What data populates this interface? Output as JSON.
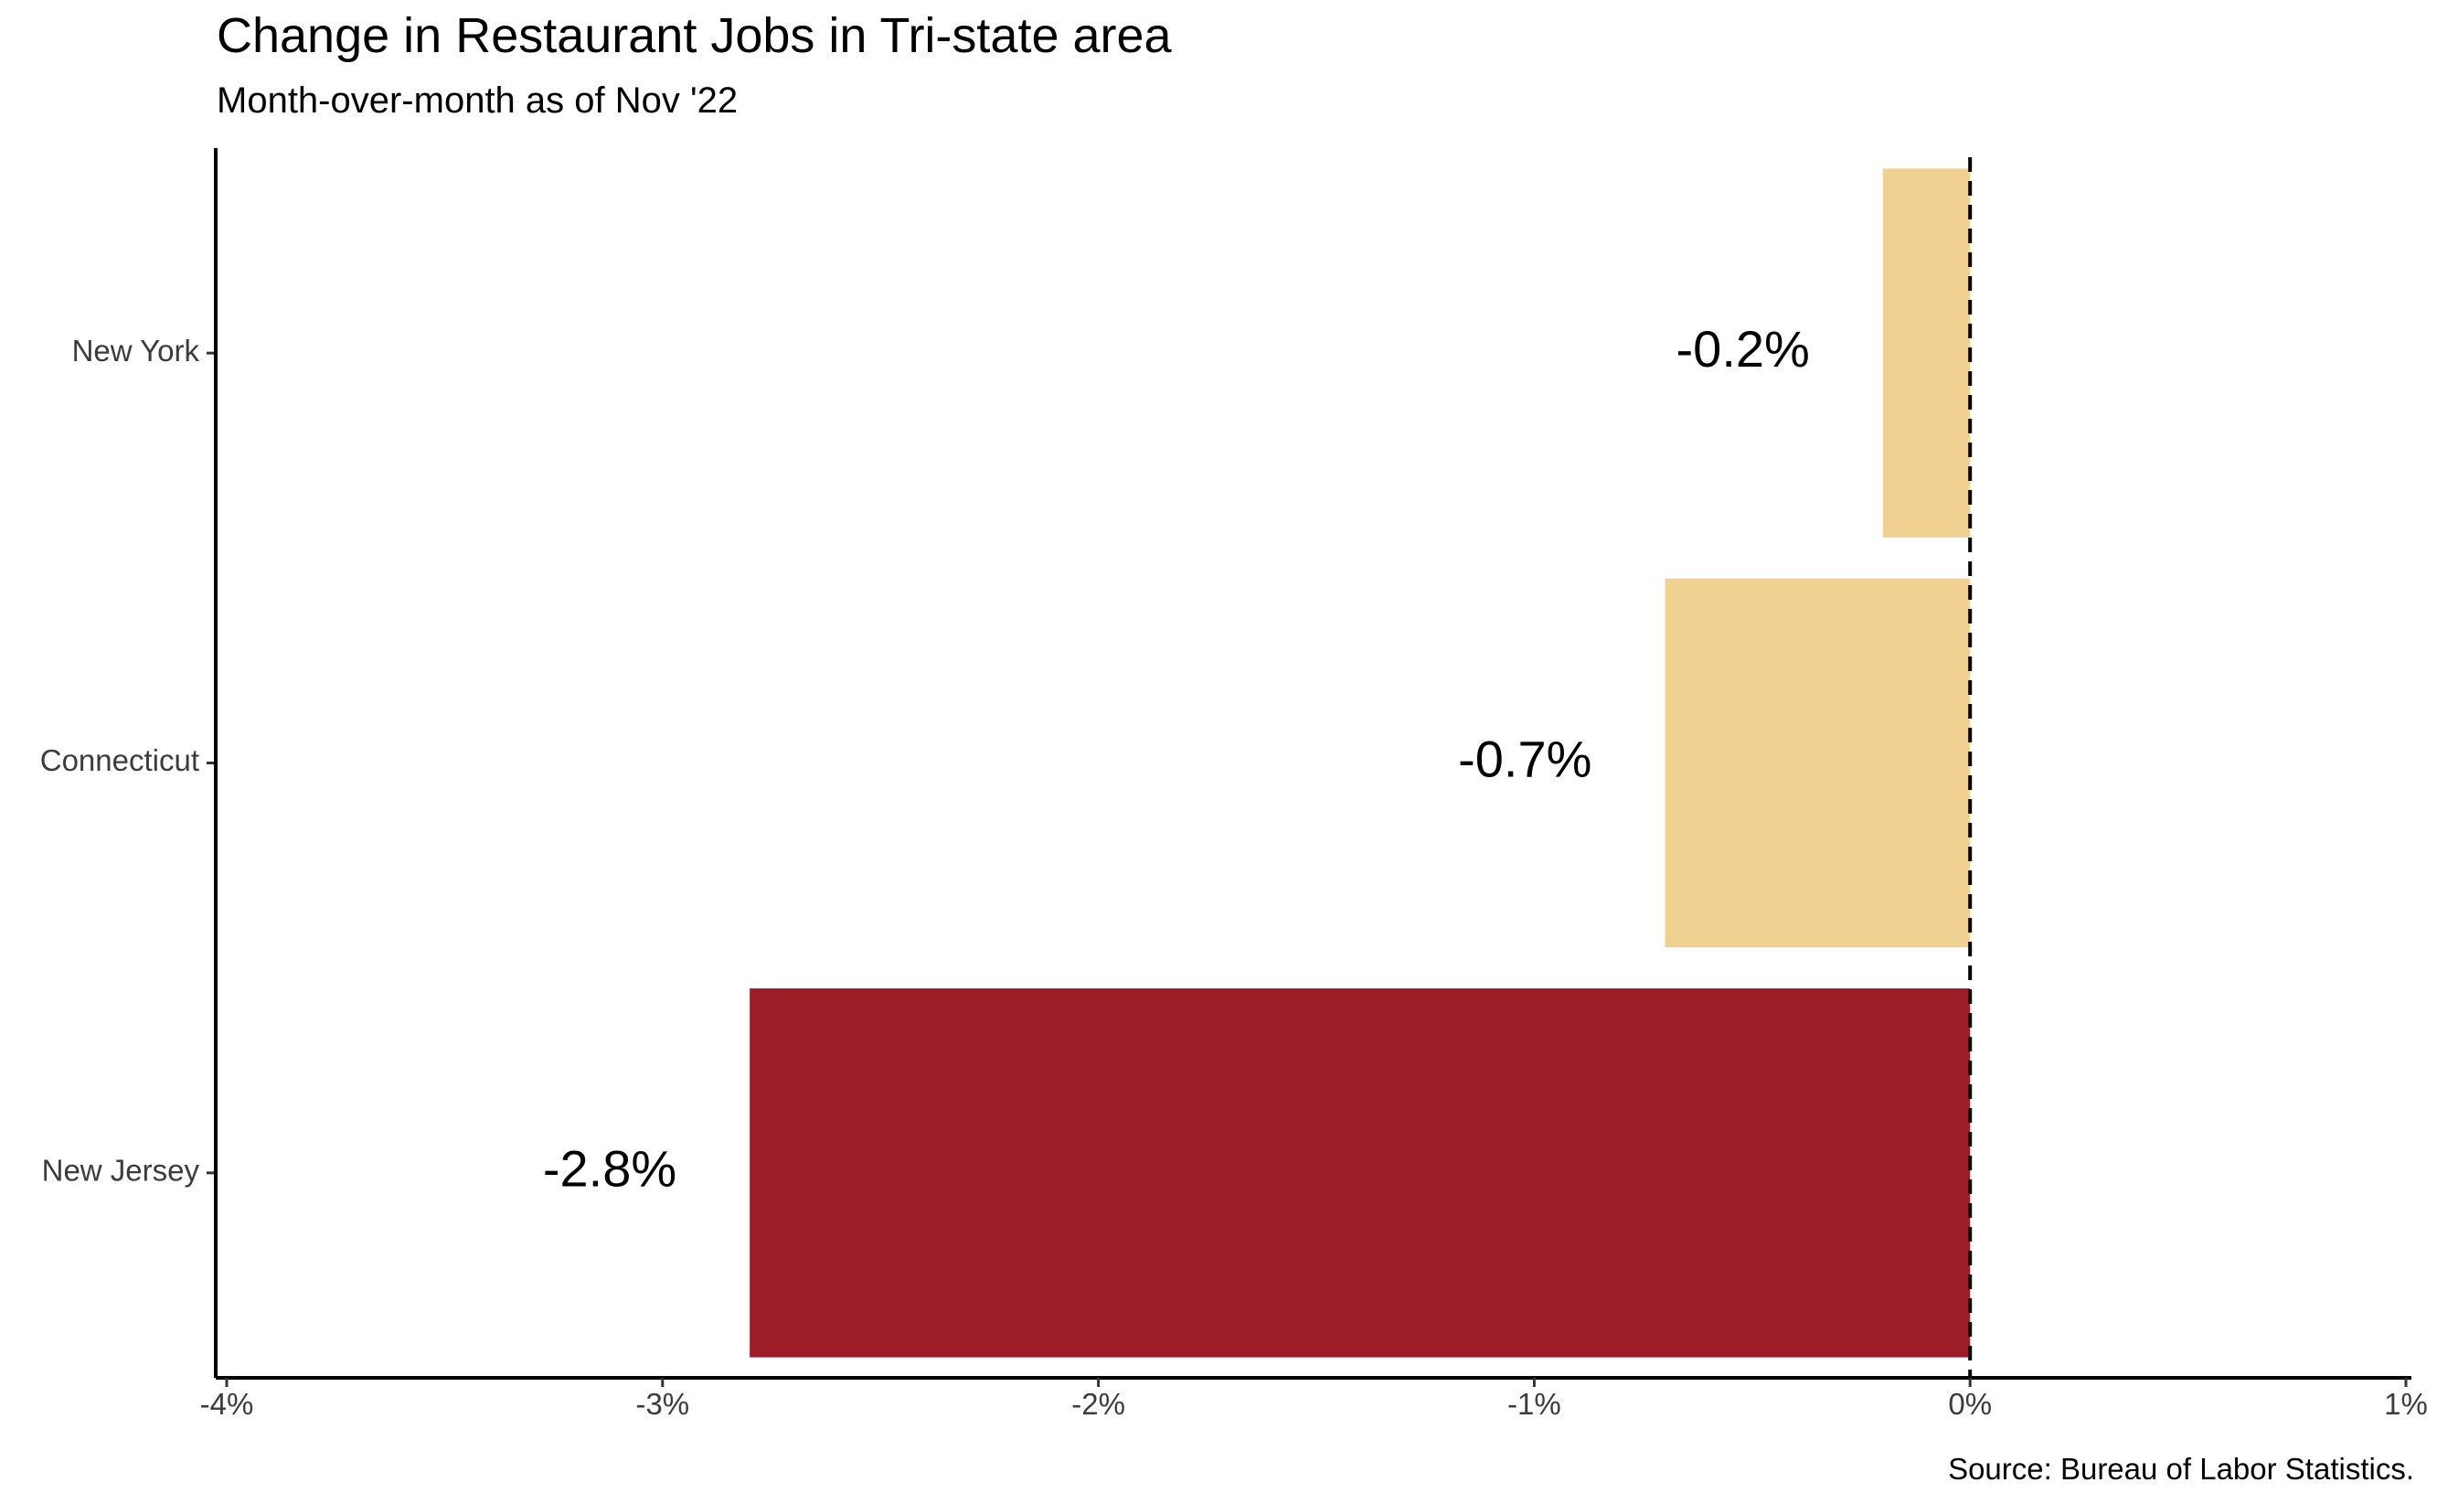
{
  "chart_data": {
    "type": "bar",
    "orientation": "horizontal",
    "title": "Change in Restaurant Jobs in Tri-state area",
    "subtitle": "Month-over-month as of Nov '22",
    "caption": "Source: Bureau of Labor Statistics.",
    "categories": [
      "New York",
      "Connecticut",
      "New Jersey"
    ],
    "values": [
      -0.2,
      -0.7,
      -2.8
    ],
    "data_labels": [
      "-0.2%",
      "-0.7%",
      "-2.8%"
    ],
    "bar_colors": [
      "#F0D192",
      "#F0D192",
      "#9C1D27"
    ],
    "xlim": [
      -4,
      1
    ],
    "x_ticks": [
      -4,
      -3,
      -2,
      -1,
      0,
      1
    ],
    "x_tick_labels": [
      "-4%",
      "-3%",
      "-2%",
      "-1%",
      "0%",
      "1%"
    ],
    "reference_line": {
      "x": 0,
      "style": "dashed"
    },
    "grid": false,
    "legend": "none"
  }
}
